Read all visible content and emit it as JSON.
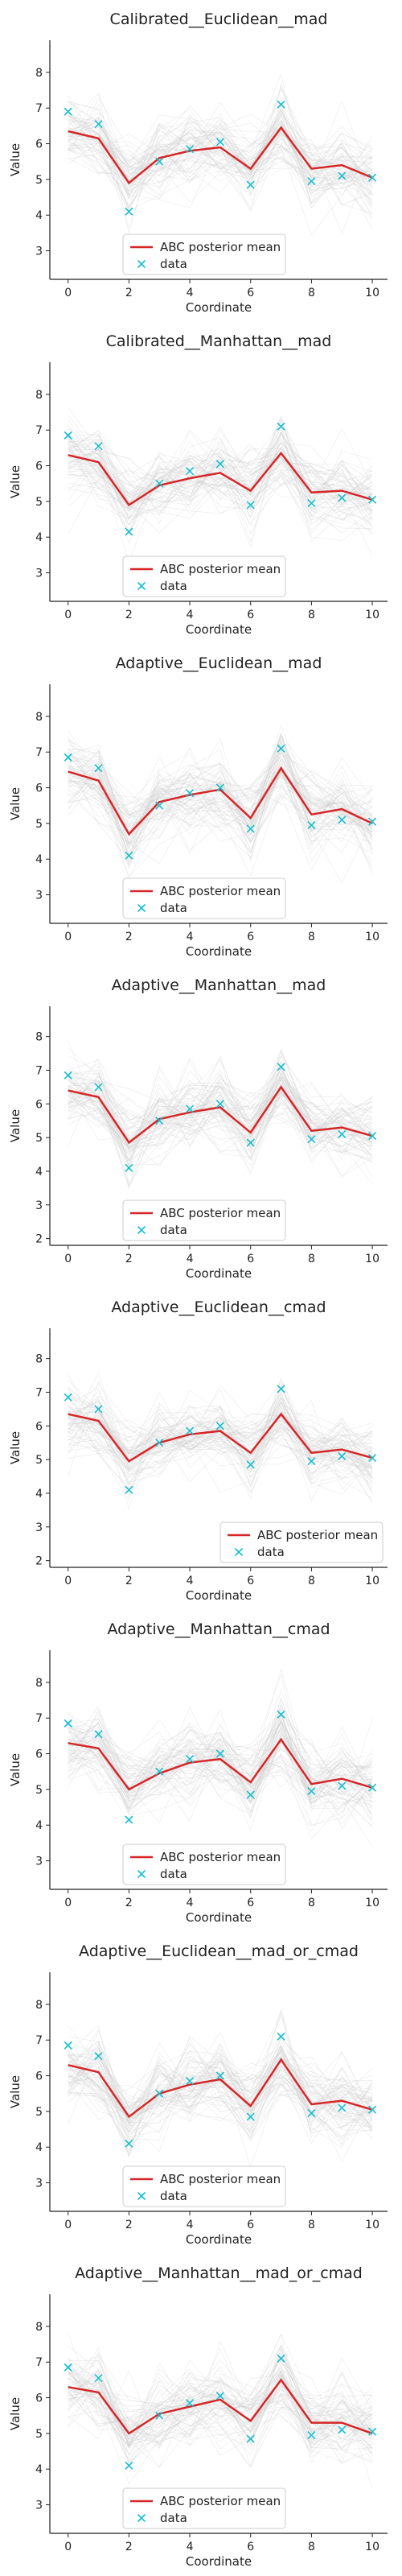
{
  "colors": {
    "mean": "#d62728",
    "data": "#17becf",
    "traces": "#9a9a9a",
    "axis": "#222222"
  },
  "legend": {
    "mean_label": "ABC posterior mean",
    "data_label": "data"
  },
  "chart_data": [
    {
      "type": "line",
      "title": "Calibrated__Euclidean__mad",
      "xlabel": "Coordinate",
      "ylabel": "Value",
      "x": [
        0,
        1,
        2,
        3,
        4,
        5,
        6,
        7,
        8,
        9,
        10
      ],
      "x_ticks": [
        0,
        2,
        4,
        6,
        8,
        10
      ],
      "y_ticks": [
        3,
        4,
        5,
        6,
        7,
        8
      ],
      "ylim": [
        2.2,
        8.9
      ],
      "legend_position": "lower center",
      "series": [
        {
          "name": "ABC posterior mean",
          "values": [
            6.35,
            6.15,
            4.9,
            5.6,
            5.8,
            5.9,
            5.3,
            6.45,
            5.3,
            5.4,
            5.05
          ]
        },
        {
          "name": "data",
          "values": [
            6.9,
            6.55,
            4.1,
            5.5,
            5.85,
            6.05,
            4.85,
            7.1,
            4.95,
            5.1,
            5.05
          ]
        }
      ]
    },
    {
      "type": "line",
      "title": "Calibrated__Manhattan__mad",
      "xlabel": "Coordinate",
      "ylabel": "Value",
      "x": [
        0,
        1,
        2,
        3,
        4,
        5,
        6,
        7,
        8,
        9,
        10
      ],
      "x_ticks": [
        0,
        2,
        4,
        6,
        8,
        10
      ],
      "y_ticks": [
        3,
        4,
        5,
        6,
        7,
        8
      ],
      "ylim": [
        2.2,
        8.9
      ],
      "legend_position": "lower center",
      "series": [
        {
          "name": "ABC posterior mean",
          "values": [
            6.3,
            6.1,
            4.9,
            5.45,
            5.65,
            5.8,
            5.3,
            6.35,
            5.25,
            5.3,
            5.05
          ]
        },
        {
          "name": "data",
          "values": [
            6.85,
            6.55,
            4.15,
            5.5,
            5.85,
            6.05,
            4.9,
            7.1,
            4.95,
            5.1,
            5.05
          ]
        }
      ]
    },
    {
      "type": "line",
      "title": "Adaptive__Euclidean__mad",
      "xlabel": "Coordinate",
      "ylabel": "Value",
      "x": [
        0,
        1,
        2,
        3,
        4,
        5,
        6,
        7,
        8,
        9,
        10
      ],
      "x_ticks": [
        0,
        2,
        4,
        6,
        8,
        10
      ],
      "y_ticks": [
        3,
        4,
        5,
        6,
        7,
        8
      ],
      "ylim": [
        2.2,
        8.9
      ],
      "legend_position": "lower center",
      "series": [
        {
          "name": "ABC posterior mean",
          "values": [
            6.45,
            6.2,
            4.7,
            5.6,
            5.8,
            5.95,
            5.15,
            6.55,
            5.25,
            5.4,
            5.0
          ]
        },
        {
          "name": "data",
          "values": [
            6.85,
            6.55,
            4.1,
            5.5,
            5.85,
            6.0,
            4.85,
            7.1,
            4.95,
            5.1,
            5.05
          ]
        }
      ]
    },
    {
      "type": "line",
      "title": "Adaptive__Manhattan__mad",
      "xlabel": "Coordinate",
      "ylabel": "Value",
      "x": [
        0,
        1,
        2,
        3,
        4,
        5,
        6,
        7,
        8,
        9,
        10
      ],
      "x_ticks": [
        0,
        2,
        4,
        6,
        8,
        10
      ],
      "y_ticks": [
        2,
        3,
        4,
        5,
        6,
        7,
        8
      ],
      "ylim": [
        1.8,
        8.9
      ],
      "legend_position": "lower center",
      "series": [
        {
          "name": "ABC posterior mean",
          "values": [
            6.4,
            6.2,
            4.85,
            5.55,
            5.75,
            5.9,
            5.15,
            6.5,
            5.2,
            5.3,
            5.05
          ]
        },
        {
          "name": "data",
          "values": [
            6.85,
            6.5,
            4.1,
            5.5,
            5.85,
            6.0,
            4.85,
            7.1,
            4.95,
            5.1,
            5.05
          ]
        }
      ]
    },
    {
      "type": "line",
      "title": "Adaptive__Euclidean__cmad",
      "xlabel": "Coordinate",
      "ylabel": "Value",
      "x": [
        0,
        1,
        2,
        3,
        4,
        5,
        6,
        7,
        8,
        9,
        10
      ],
      "x_ticks": [
        0,
        2,
        4,
        6,
        8,
        10
      ],
      "y_ticks": [
        2,
        3,
        4,
        5,
        6,
        7,
        8
      ],
      "ylim": [
        1.8,
        8.9
      ],
      "legend_position": "lower right",
      "series": [
        {
          "name": "ABC posterior mean",
          "values": [
            6.35,
            6.15,
            4.95,
            5.5,
            5.75,
            5.85,
            5.2,
            6.35,
            5.2,
            5.3,
            5.05
          ]
        },
        {
          "name": "data",
          "values": [
            6.85,
            6.5,
            4.1,
            5.5,
            5.85,
            6.0,
            4.85,
            7.1,
            4.95,
            5.1,
            5.05
          ]
        }
      ]
    },
    {
      "type": "line",
      "title": "Adaptive__Manhattan__cmad",
      "xlabel": "Coordinate",
      "ylabel": "Value",
      "x": [
        0,
        1,
        2,
        3,
        4,
        5,
        6,
        7,
        8,
        9,
        10
      ],
      "x_ticks": [
        0,
        2,
        4,
        6,
        8,
        10
      ],
      "y_ticks": [
        3,
        4,
        5,
        6,
        7,
        8
      ],
      "ylim": [
        2.2,
        8.9
      ],
      "legend_position": "lower center",
      "series": [
        {
          "name": "ABC posterior mean",
          "values": [
            6.3,
            6.15,
            5.0,
            5.45,
            5.75,
            5.85,
            5.2,
            6.4,
            5.15,
            5.3,
            5.05
          ]
        },
        {
          "name": "data",
          "values": [
            6.85,
            6.55,
            4.15,
            5.5,
            5.85,
            6.0,
            4.85,
            7.1,
            4.95,
            5.1,
            5.05
          ]
        }
      ]
    },
    {
      "type": "line",
      "title": "Adaptive__Euclidean__mad_or_cmad",
      "xlabel": "Coordinate",
      "ylabel": "Value",
      "x": [
        0,
        1,
        2,
        3,
        4,
        5,
        6,
        7,
        8,
        9,
        10
      ],
      "x_ticks": [
        0,
        2,
        4,
        6,
        8,
        10
      ],
      "y_ticks": [
        3,
        4,
        5,
        6,
        7,
        8
      ],
      "ylim": [
        2.2,
        8.9
      ],
      "legend_position": "lower center",
      "series": [
        {
          "name": "ABC posterior mean",
          "values": [
            6.3,
            6.1,
            4.85,
            5.5,
            5.75,
            5.9,
            5.15,
            6.45,
            5.2,
            5.3,
            5.05
          ]
        },
        {
          "name": "data",
          "values": [
            6.85,
            6.55,
            4.1,
            5.5,
            5.85,
            6.0,
            4.85,
            7.1,
            4.95,
            5.1,
            5.05
          ]
        }
      ]
    },
    {
      "type": "line",
      "title": "Adaptive__Manhattan__mad_or_cmad",
      "xlabel": "Coordinate",
      "ylabel": "Value",
      "x": [
        0,
        1,
        2,
        3,
        4,
        5,
        6,
        7,
        8,
        9,
        10
      ],
      "x_ticks": [
        0,
        2,
        4,
        6,
        8,
        10
      ],
      "y_ticks": [
        3,
        4,
        5,
        6,
        7,
        8
      ],
      "ylim": [
        2.2,
        8.9
      ],
      "legend_position": "lower center",
      "series": [
        {
          "name": "ABC posterior mean",
          "values": [
            6.3,
            6.15,
            5.0,
            5.55,
            5.75,
            5.95,
            5.35,
            6.5,
            5.3,
            5.3,
            5.0
          ]
        },
        {
          "name": "data",
          "values": [
            6.85,
            6.55,
            4.1,
            5.5,
            5.85,
            6.05,
            4.85,
            7.1,
            4.95,
            5.1,
            5.05
          ]
        }
      ]
    }
  ]
}
